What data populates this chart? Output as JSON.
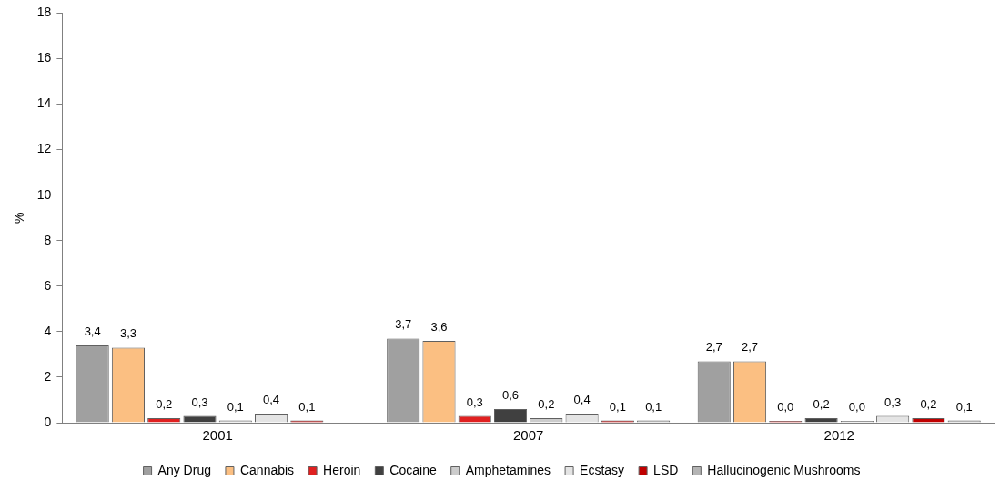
{
  "chart_data": {
    "type": "bar",
    "ylabel": "%",
    "categories": [
      "2001",
      "2007",
      "2012"
    ],
    "series": [
      {
        "name": "Any Drug",
        "color": "#a0a0a0",
        "values": [
          3.4,
          3.7,
          2.7
        ],
        "value_labels": [
          "3,4",
          "3,7",
          "2,7"
        ]
      },
      {
        "name": "Cannabis",
        "color": "#fbbf82",
        "values": [
          3.3,
          3.6,
          2.7
        ],
        "value_labels": [
          "3,3",
          "3,6",
          "2,7"
        ]
      },
      {
        "name": "Heroin",
        "color": "#e02020",
        "values": [
          0.2,
          0.3,
          0.0
        ],
        "value_labels": [
          "0,2",
          "0,3",
          "0,0"
        ]
      },
      {
        "name": "Cocaine",
        "color": "#404040",
        "values": [
          0.3,
          0.6,
          0.2
        ],
        "value_labels": [
          "0,3",
          "0,6",
          "0,2"
        ]
      },
      {
        "name": "Amphetamines",
        "color": "#cccccc",
        "values": [
          0.1,
          0.2,
          0.0
        ],
        "value_labels": [
          "0,1",
          "0,2",
          "0,0"
        ]
      },
      {
        "name": "Ecstasy",
        "color": "#e4e4e4",
        "values": [
          0.4,
          0.4,
          0.3
        ],
        "value_labels": [
          "0,4",
          "0,4",
          "0,3"
        ]
      },
      {
        "name": "LSD",
        "color": "#c00000",
        "values": [
          0.1,
          0.1,
          0.2
        ],
        "value_labels": [
          "0,1",
          "0,1",
          "0,2"
        ]
      },
      {
        "name": "Hallucinogenic Mushrooms",
        "color": "#b4b4b4",
        "values": [
          null,
          0.1,
          0.1
        ],
        "value_labels": [
          null,
          "0,1",
          "0,1"
        ]
      }
    ],
    "ylim": [
      0,
      18
    ],
    "yticks": [
      0,
      2,
      4,
      6,
      8,
      10,
      12,
      14,
      16,
      18
    ],
    "grid": false,
    "legend": "bottom"
  }
}
